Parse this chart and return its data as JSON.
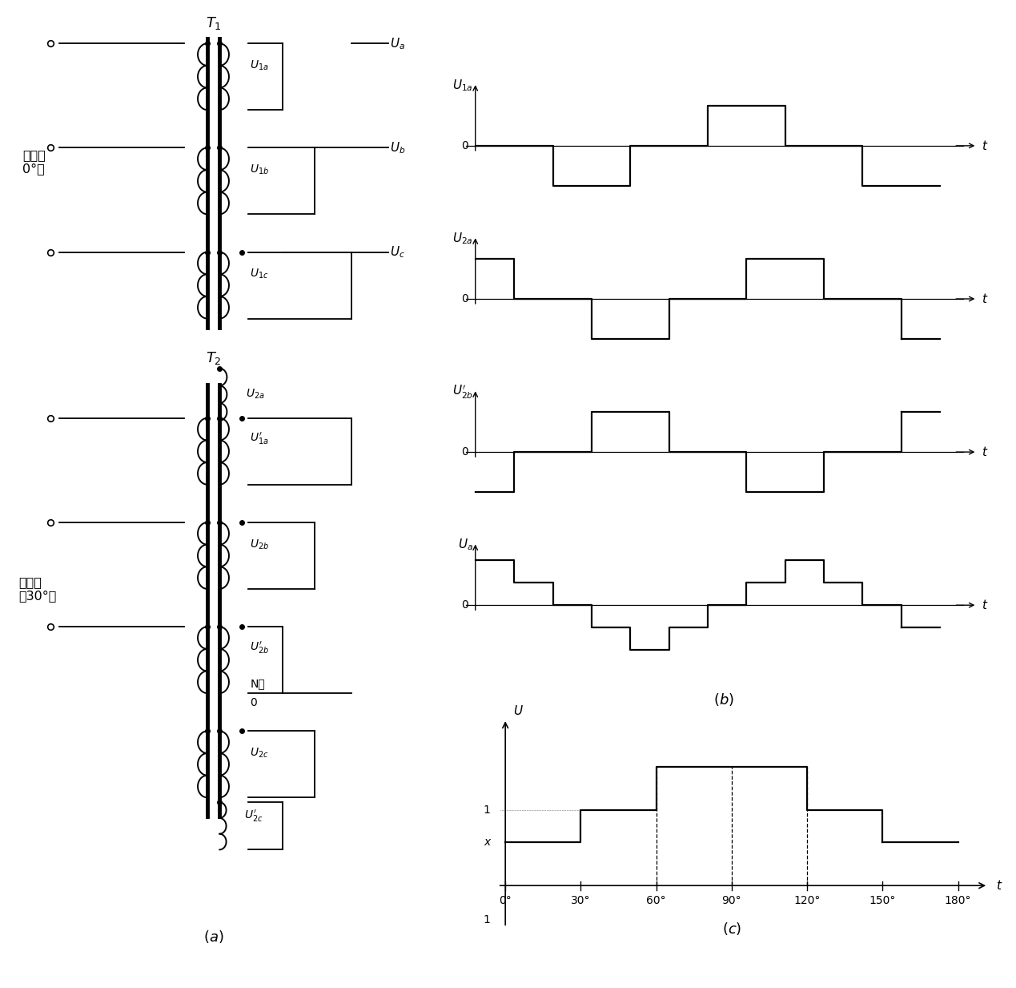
{
  "fig_width": 12.69,
  "fig_height": 12.33,
  "bg_color": "#ffffff",
  "line_color": "#000000",
  "core_lw": 3.5,
  "wire_lw": 1.3,
  "wave_lw": 1.6,
  "coil_lw": 1.4,
  "dot_size": 4,
  "T1_label": "$\\mathbf{T_1}$",
  "T2_label": "$\\mathbf{T_2}$",
  "label_a_text": "$(a)$",
  "label_b_text": "$(b)$",
  "label_c_text": "$(c)$",
  "text_first": "第一台\n0°桥",
  "text_second": "第二台\n后30°桥",
  "wf_xlim": [
    0,
    10
  ],
  "wf_ylim_sq": [
    -1.8,
    1.8
  ],
  "wf_ylim_stair": [
    -3.2,
    3.2
  ],
  "U1a_label": "$U_{1a}$",
  "U2a_label": "$U_{2a}$",
  "U2bprime_label": "$U^{\\prime}_{2b}$",
  "Ua_label": "$U_a$",
  "U_label": "$U$",
  "t_label": "$t$",
  "zero_label": "0",
  "x_label": "x",
  "one_label": "1",
  "angle_labels": [
    "0°",
    "30°",
    "60°",
    "90°",
    "120°",
    "150°",
    "180°"
  ],
  "U1a_t": [
    0,
    1.67,
    1.67,
    3.33,
    3.33,
    5.0,
    5.0,
    6.67,
    6.67,
    8.33,
    8.33,
    10.0
  ],
  "U1a_v": [
    0,
    0,
    -1,
    -1,
    0,
    0,
    1,
    1,
    0,
    0,
    -1,
    -1
  ],
  "U2a_t": [
    0,
    0.83,
    0.83,
    2.5,
    2.5,
    4.17,
    4.17,
    5.83,
    5.83,
    7.5,
    7.5,
    9.17,
    9.17,
    10.0
  ],
  "U2a_v": [
    1,
    1,
    0,
    0,
    -1,
    -1,
    0,
    0,
    1,
    1,
    0,
    0,
    -1,
    -1
  ],
  "U2bp_t": [
    0,
    0.83,
    0.83,
    2.5,
    2.5,
    4.17,
    4.17,
    5.83,
    5.83,
    7.5,
    7.5,
    9.17,
    9.17,
    10.0
  ],
  "U2bp_v": [
    -1,
    -1,
    0,
    0,
    1,
    1,
    0,
    0,
    -1,
    -1,
    0,
    0,
    1,
    1
  ],
  "Ua_t": [
    0,
    0.83,
    0.83,
    1.67,
    1.67,
    2.5,
    2.5,
    3.33,
    3.33,
    4.17,
    4.17,
    5.0,
    5.0,
    5.83,
    5.83,
    6.67,
    6.67,
    7.5,
    7.5,
    8.33,
    8.33,
    9.17,
    9.17,
    10.0
  ],
  "Ua_v": [
    2,
    2,
    1,
    1,
    0,
    0,
    -1,
    -1,
    -2,
    -2,
    -1,
    -1,
    0,
    0,
    1,
    1,
    2,
    2,
    1,
    1,
    0,
    0,
    -1,
    -1
  ],
  "c_t": [
    0,
    30,
    30,
    60,
    60,
    120,
    120,
    150,
    150,
    180
  ],
  "c_v": [
    0.57,
    0.57,
    1.0,
    1.0,
    1.57,
    1.57,
    1.0,
    1.0,
    0.57,
    0.57
  ],
  "c_dashes": [
    60,
    90,
    120
  ],
  "c_xlim": [
    -5,
    195
  ],
  "c_ylim": [
    -0.7,
    2.3
  ],
  "c_x_ticks": [
    0,
    30,
    60,
    90,
    120,
    150,
    180
  ]
}
